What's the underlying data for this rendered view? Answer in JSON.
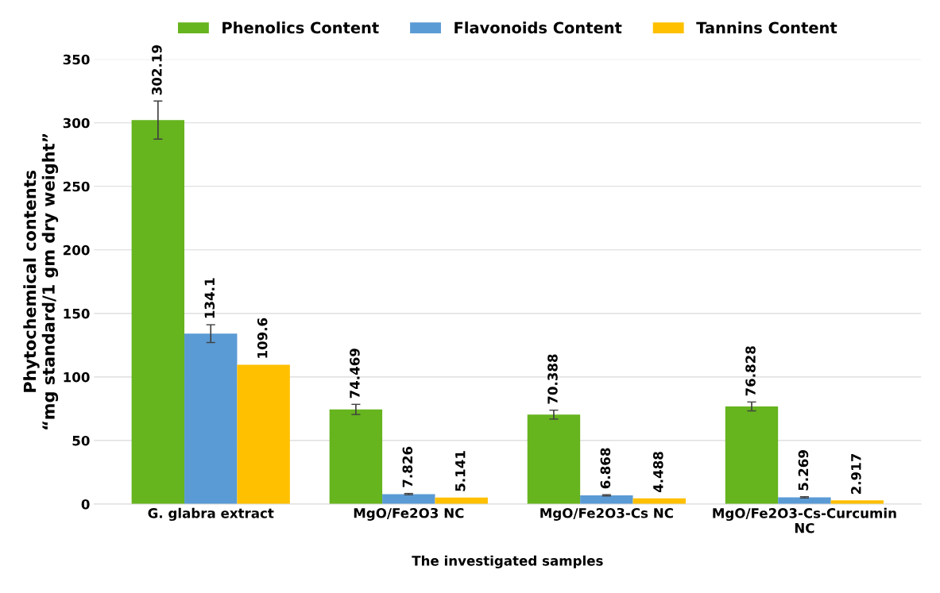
{
  "chart_data": {
    "type": "bar",
    "categories": [
      "G. glabra extract",
      "MgO/Fe2O3 NC",
      "MgO/Fe2O3-Cs NC",
      "MgO/Fe2O3-Cs-Curcumin NC"
    ],
    "xlabel": "The investigated samples",
    "ylabel": "Phytochemical contents\n“mg standard/1 gm dry weight”",
    "series": [
      {
        "name": "Phenolics Content",
        "color": "#66b41e",
        "values": [
          302.19,
          74.469,
          70.388,
          76.828
        ],
        "errors": [
          15,
          4,
          3.5,
          3.5
        ]
      },
      {
        "name": "Flavonoids Content",
        "color": "#5b9bd5",
        "values": [
          134.1,
          7.826,
          6.868,
          5.269
        ],
        "errors": [
          7,
          0.5,
          0.5,
          0.5
        ]
      },
      {
        "name": "Tannins Content",
        "color": "#ffc000",
        "values": [
          109.6,
          5.141,
          4.488,
          2.917
        ],
        "errors": [
          null,
          null,
          null,
          null
        ]
      }
    ],
    "ylim": [
      0,
      350
    ],
    "yticks": [
      0,
      50,
      100,
      150,
      200,
      250,
      300,
      350
    ],
    "grid": "y",
    "legend": "top",
    "data_labels": true
  }
}
